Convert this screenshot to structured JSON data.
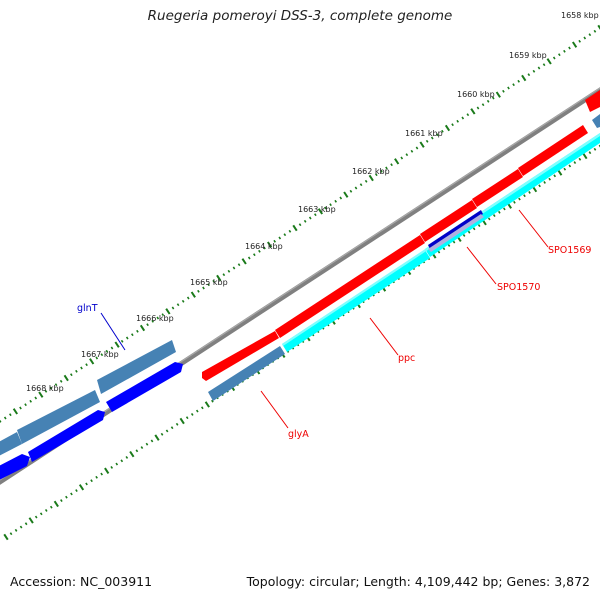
{
  "title": "Ruegeria pomeroyi DSS-3, complete genome",
  "footer": {
    "accession": "Accession: NC_003911",
    "topology": "Topology: circular; Length: 4,109,442 bp; Genes: 3,872"
  },
  "colors": {
    "backbone": "#808080",
    "tick": "#1a7a1a",
    "red_feature": "#ff0000",
    "cyan_feature": "#00ffff",
    "blue_feature": "#0000ff",
    "steel_feature": "#4682b4",
    "dark_blue_feature": "#0000c8",
    "gene_label_red": "#ee0000",
    "gene_label_blue": "#0000cc"
  },
  "scale_labels": [
    "1658 kbp",
    "1659 kbp",
    "1660 kbp",
    "1661 kbp",
    "1662 kbp",
    "1663 kbp",
    "1664 kbp",
    "1665 kbp",
    "1666 kbp",
    "1667 kbp",
    "1668 kbp"
  ],
  "gene_labels": [
    "glnT",
    "ppc",
    "SPO1569",
    "SPO1570",
    "glyA"
  ]
}
